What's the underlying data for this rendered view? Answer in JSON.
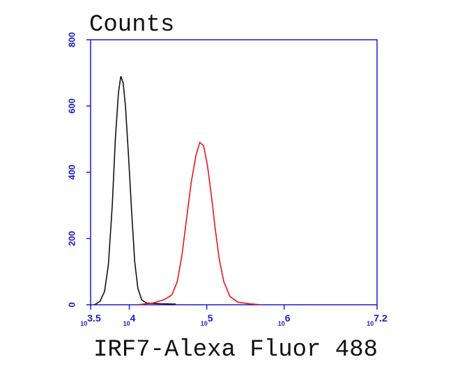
{
  "chart_data": {
    "type": "line",
    "x_scale": "log",
    "y_label": "Counts",
    "x_label": "IRF7-Alexa Fluor 488",
    "xlim": [
      3162.28,
      15848932
    ],
    "xticks": [
      {
        "value": 3162.28,
        "label": "10",
        "sup": "3.5"
      },
      {
        "value": 10000,
        "label": "10",
        "sup": "4"
      },
      {
        "value": 100000,
        "label": "10",
        "sup": "5"
      },
      {
        "value": 1000000,
        "label": "10",
        "sup": "6"
      },
      {
        "value": 15848932,
        "label": "10",
        "sup": "7.2"
      }
    ],
    "ylim": [
      0,
      800
    ],
    "yticks": [
      0,
      200,
      400,
      600,
      800
    ],
    "axis_color": "#1a1ad0",
    "series": [
      {
        "color": "#111111",
        "x": [
          3548,
          4169,
          4786,
          5370,
          6026,
          6607,
          7244,
          7762,
          8318,
          8913,
          9772,
          10715,
          11749,
          12882,
          14454,
          16596,
          25119,
          39811
        ],
        "values": [
          0,
          10,
          40,
          120,
          300,
          500,
          640,
          690,
          670,
          600,
          450,
          280,
          130,
          50,
          15,
          5,
          3,
          2
        ]
      },
      {
        "color": "#e8141b",
        "x": [
          12589,
          19953,
          28184,
          35481,
          41687,
          47863,
          54954,
          63096,
          72444,
          81283,
          91201,
          102329,
          114815,
          128825,
          144544,
          165959,
          199526,
          251189,
          354813,
          501187
        ],
        "values": [
          0,
          5,
          15,
          30,
          70,
          150,
          260,
          370,
          450,
          490,
          480,
          420,
          330,
          230,
          140,
          70,
          25,
          8,
          3,
          0
        ]
      }
    ]
  }
}
